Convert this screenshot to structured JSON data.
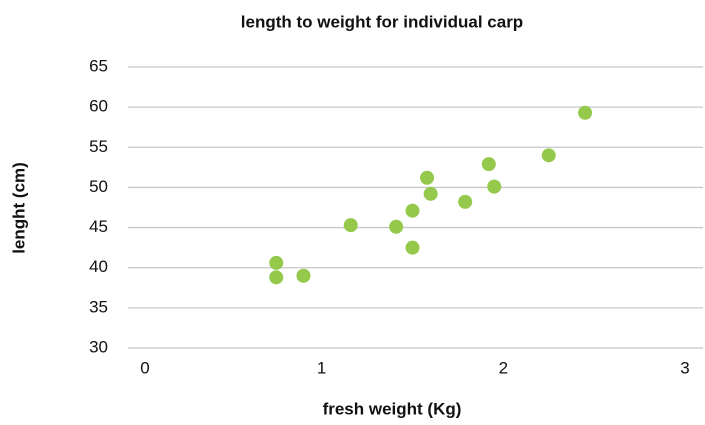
{
  "chart_data": {
    "type": "scatter",
    "title": "length to weight for individual carp",
    "x_label": "fresh weight (Kg)",
    "y_label": "lenght (cm)",
    "series": [
      {
        "color": "#94c94c",
        "x": [
          0.75,
          0.75,
          0.9,
          1.16,
          1.41,
          1.5,
          1.5,
          1.58,
          1.6,
          1.79,
          1.92,
          1.95,
          2.25,
          2.45
        ],
        "values": [
          40.6,
          38.8,
          39.0,
          45.3,
          45.1,
          42.5,
          47.1,
          51.2,
          49.2,
          48.2,
          52.9,
          50.1,
          54.0,
          59.3
        ]
      }
    ],
    "xlim": [
      0,
      3
    ],
    "xticks": [
      0,
      1,
      2,
      3
    ],
    "ylim": [
      30,
      65
    ],
    "yticks": [
      30,
      35,
      40,
      45,
      50,
      55,
      60,
      65
    ],
    "grid": true
  }
}
